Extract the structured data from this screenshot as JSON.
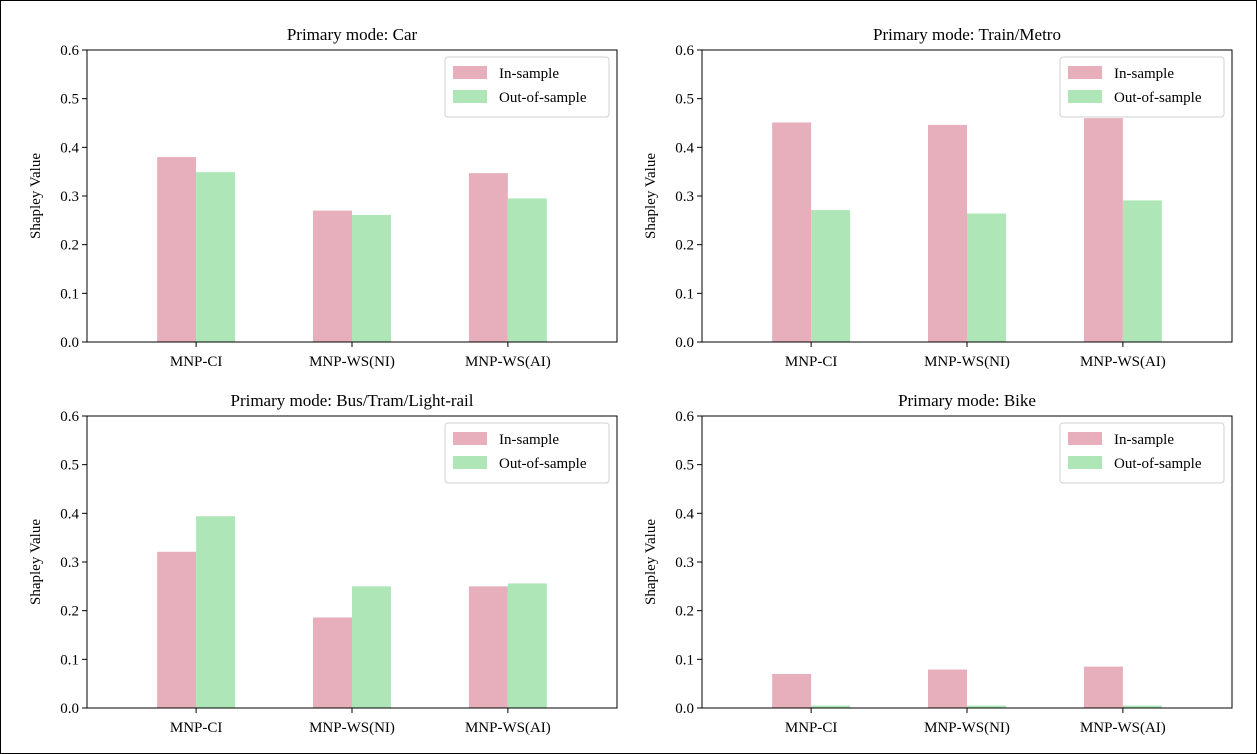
{
  "chart_data": [
    {
      "type": "bar",
      "title": "Primary mode: Car",
      "ylabel": "Shapley Value",
      "ylim": [
        0,
        0.6
      ],
      "yticks": [
        "0.0",
        "0.1",
        "0.2",
        "0.3",
        "0.4",
        "0.5",
        "0.6"
      ],
      "categories": [
        "MNP-CI",
        "MNP-WS(NI)",
        "MNP-WS(AI)"
      ],
      "series": [
        {
          "name": "In-sample",
          "values": [
            0.38,
            0.27,
            0.347
          ]
        },
        {
          "name": "Out-of-sample",
          "values": [
            0.349,
            0.261,
            0.295
          ]
        }
      ],
      "legend": "top-right"
    },
    {
      "type": "bar",
      "title": "Primary mode: Train/Metro",
      "ylabel": "Shapley Value",
      "ylim": [
        0,
        0.6
      ],
      "yticks": [
        "0.0",
        "0.1",
        "0.2",
        "0.3",
        "0.4",
        "0.5",
        "0.6"
      ],
      "categories": [
        "MNP-CI",
        "MNP-WS(NI)",
        "MNP-WS(AI)"
      ],
      "series": [
        {
          "name": "In-sample",
          "values": [
            0.451,
            0.446,
            0.46
          ]
        },
        {
          "name": "Out-of-sample",
          "values": [
            0.271,
            0.264,
            0.291
          ]
        }
      ],
      "legend": "top-right"
    },
    {
      "type": "bar",
      "title": "Primary mode: Bus/Tram/Light-rail",
      "ylabel": "Shapley Value",
      "ylim": [
        0,
        0.6
      ],
      "yticks": [
        "0.0",
        "0.1",
        "0.2",
        "0.3",
        "0.4",
        "0.5",
        "0.6"
      ],
      "categories": [
        "MNP-CI",
        "MNP-WS(NI)",
        "MNP-WS(AI)"
      ],
      "series": [
        {
          "name": "In-sample",
          "values": [
            0.321,
            0.186,
            0.25
          ]
        },
        {
          "name": "Out-of-sample",
          "values": [
            0.394,
            0.25,
            0.256
          ]
        }
      ],
      "legend": "top-right"
    },
    {
      "type": "bar",
      "title": "Primary mode: Bike",
      "ylabel": "Shapley Value",
      "ylim": [
        0,
        0.6
      ],
      "yticks": [
        "0.0",
        "0.1",
        "0.2",
        "0.3",
        "0.4",
        "0.5",
        "0.6"
      ],
      "categories": [
        "MNP-CI",
        "MNP-WS(NI)",
        "MNP-WS(AI)"
      ],
      "series": [
        {
          "name": "In-sample",
          "values": [
            0.07,
            0.079,
            0.085
          ]
        },
        {
          "name": "Out-of-sample",
          "values": [
            0.005,
            0.005,
            0.005
          ]
        }
      ],
      "legend": "top-right"
    }
  ],
  "colors": {
    "in_sample": "#e6afbb",
    "out_of_sample": "#aee6b8"
  }
}
